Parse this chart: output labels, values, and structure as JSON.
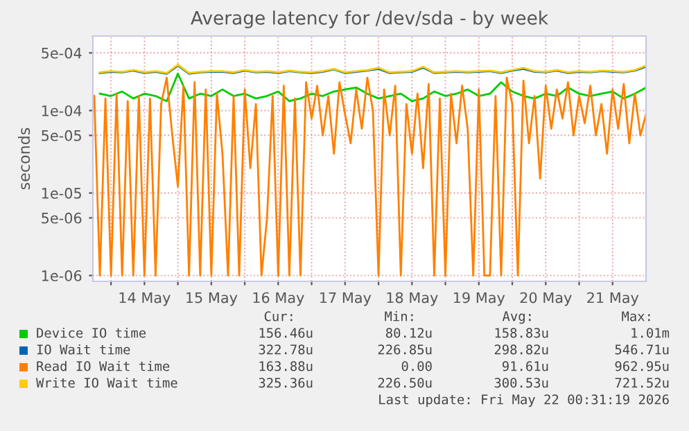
{
  "chart_data": {
    "type": "line",
    "title": "Average latency for /dev/sda - by week",
    "ylabel": "seconds",
    "log": "y",
    "grid": true,
    "legend": "bottom",
    "marker": "none",
    "line_style": "solid",
    "ylim": [
      8.5e-07,
      0.0008
    ],
    "yticks": [
      {
        "value": 1e-06,
        "label": "1e-06"
      },
      {
        "value": 5e-06,
        "label": "5e-06"
      },
      {
        "value": 1e-05,
        "label": "1e-05"
      },
      {
        "value": 5e-05,
        "label": "5e-05"
      },
      {
        "value": 0.0001,
        "label": "1e-04"
      },
      {
        "value": 0.0005,
        "label": "5e-04"
      }
    ],
    "xlim": [
      "2026-05-13T17:30",
      "2026-05-22T00:00"
    ],
    "xticks": [
      {
        "value": "2026-05-14T00:00",
        "label": null
      },
      {
        "value": "2026-05-14T12:00",
        "label": "14 May"
      },
      {
        "value": "2026-05-15T00:00",
        "label": null
      },
      {
        "value": "2026-05-15T12:00",
        "label": "15 May"
      },
      {
        "value": "2026-05-16T00:00",
        "label": null
      },
      {
        "value": "2026-05-16T12:00",
        "label": "16 May"
      },
      {
        "value": "2026-05-17T00:00",
        "label": null
      },
      {
        "value": "2026-05-17T12:00",
        "label": "17 May"
      },
      {
        "value": "2026-05-18T00:00",
        "label": null
      },
      {
        "value": "2026-05-18T12:00",
        "label": "18 May"
      },
      {
        "value": "2026-05-19T00:00",
        "label": null
      },
      {
        "value": "2026-05-19T12:00",
        "label": "19 May"
      },
      {
        "value": "2026-05-20T00:00",
        "label": null
      },
      {
        "value": "2026-05-20T12:00",
        "label": "20 May"
      },
      {
        "value": "2026-05-21T00:00",
        "label": null
      },
      {
        "value": "2026-05-21T12:00",
        "label": "21 May"
      }
    ],
    "series": [
      {
        "name": "Device IO time",
        "color": "#00cc00",
        "x": [
          "2026-05-13T20:00",
          "2026-05-14T00:00",
          "2026-05-14T04:00",
          "2026-05-14T08:00",
          "2026-05-14T12:00",
          "2026-05-14T16:00",
          "2026-05-14T20:00",
          "2026-05-15T00:00",
          "2026-05-15T04:00",
          "2026-05-15T08:00",
          "2026-05-15T12:00",
          "2026-05-15T16:00",
          "2026-05-15T20:00",
          "2026-05-16T00:00",
          "2026-05-16T04:00",
          "2026-05-16T08:00",
          "2026-05-16T12:00",
          "2026-05-16T16:00",
          "2026-05-16T20:00",
          "2026-05-17T00:00",
          "2026-05-17T04:00",
          "2026-05-17T08:00",
          "2026-05-17T12:00",
          "2026-05-17T16:00",
          "2026-05-17T20:00",
          "2026-05-18T00:00",
          "2026-05-18T04:00",
          "2026-05-18T08:00",
          "2026-05-18T12:00",
          "2026-05-18T16:00",
          "2026-05-18T20:00",
          "2026-05-19T00:00",
          "2026-05-19T04:00",
          "2026-05-19T08:00",
          "2026-05-19T12:00",
          "2026-05-19T16:00",
          "2026-05-19T20:00",
          "2026-05-20T00:00",
          "2026-05-20T04:00",
          "2026-05-20T08:00",
          "2026-05-20T12:00",
          "2026-05-20T16:00",
          "2026-05-20T20:00",
          "2026-05-21T00:00",
          "2026-05-21T04:00",
          "2026-05-21T08:00",
          "2026-05-21T12:00",
          "2026-05-21T16:00",
          "2026-05-21T20:00",
          "2026-05-22T00:00"
        ],
        "values": [
          0.00016,
          0.00015,
          0.00017,
          0.00014,
          0.00016,
          0.00015,
          0.00013,
          0.00028,
          0.00014,
          0.00016,
          0.00015,
          0.00018,
          0.00015,
          0.00016,
          0.00014,
          0.00015,
          0.00017,
          0.00013,
          0.00014,
          0.00016,
          0.00015,
          0.00017,
          0.00018,
          0.00019,
          0.00016,
          0.00014,
          0.00015,
          0.00016,
          0.00013,
          0.00014,
          0.00017,
          0.00015,
          0.00016,
          0.00018,
          0.00015,
          0.00016,
          0.00022,
          0.00017,
          0.00015,
          0.00014,
          0.00016,
          0.00015,
          0.00019,
          0.00016,
          0.00015,
          0.00016,
          0.00017,
          0.00014,
          0.00016,
          0.00019
        ]
      },
      {
        "name": "IO Wait time",
        "color": "#0066b3",
        "x": [
          "2026-05-13T20:00",
          "2026-05-14T00:00",
          "2026-05-14T04:00",
          "2026-05-14T08:00",
          "2026-05-14T12:00",
          "2026-05-14T16:00",
          "2026-05-14T20:00",
          "2026-05-15T00:00",
          "2026-05-15T04:00",
          "2026-05-15T08:00",
          "2026-05-15T12:00",
          "2026-05-15T16:00",
          "2026-05-15T20:00",
          "2026-05-16T00:00",
          "2026-05-16T04:00",
          "2026-05-16T08:00",
          "2026-05-16T12:00",
          "2026-05-16T16:00",
          "2026-05-16T20:00",
          "2026-05-17T00:00",
          "2026-05-17T04:00",
          "2026-05-17T08:00",
          "2026-05-17T12:00",
          "2026-05-17T16:00",
          "2026-05-17T20:00",
          "2026-05-18T00:00",
          "2026-05-18T04:00",
          "2026-05-18T08:00",
          "2026-05-18T12:00",
          "2026-05-18T16:00",
          "2026-05-18T20:00",
          "2026-05-19T00:00",
          "2026-05-19T04:00",
          "2026-05-19T08:00",
          "2026-05-19T12:00",
          "2026-05-19T16:00",
          "2026-05-19T20:00",
          "2026-05-20T00:00",
          "2026-05-20T04:00",
          "2026-05-20T08:00",
          "2026-05-20T12:00",
          "2026-05-20T16:00",
          "2026-05-20T20:00",
          "2026-05-21T00:00",
          "2026-05-21T04:00",
          "2026-05-21T08:00",
          "2026-05-21T12:00",
          "2026-05-21T16:00",
          "2026-05-21T20:00",
          "2026-05-22T00:00"
        ],
        "values": [
          0.000285,
          0.000295,
          0.00029,
          0.000305,
          0.000285,
          0.000295,
          0.00028,
          0.00035,
          0.00028,
          0.00029,
          0.000295,
          0.000295,
          0.000285,
          0.000305,
          0.00029,
          0.000295,
          0.000285,
          0.0003,
          0.00029,
          0.000285,
          0.000295,
          0.000315,
          0.000285,
          0.000295,
          0.000305,
          0.00032,
          0.000285,
          0.00029,
          0.000295,
          0.00033,
          0.000285,
          0.00029,
          0.000295,
          0.00029,
          0.000295,
          0.0003,
          0.000285,
          0.000305,
          0.00032,
          0.000295,
          0.00029,
          0.000305,
          0.000285,
          0.000295,
          0.00029,
          0.0003,
          0.000295,
          0.00029,
          0.000305,
          0.00034
        ]
      },
      {
        "name": "Read IO Wait time",
        "color": "#ff8000",
        "x": [
          "2026-05-13T18:00",
          "2026-05-13T20:00",
          "2026-05-13T22:00",
          "2026-05-14T00:00",
          "2026-05-14T02:00",
          "2026-05-14T04:00",
          "2026-05-14T06:00",
          "2026-05-14T08:00",
          "2026-05-14T10:00",
          "2026-05-14T12:00",
          "2026-05-14T14:00",
          "2026-05-14T16:00",
          "2026-05-14T18:00",
          "2026-05-14T20:00",
          "2026-05-14T22:00",
          "2026-05-15T00:00",
          "2026-05-15T02:00",
          "2026-05-15T04:00",
          "2026-05-15T06:00",
          "2026-05-15T08:00",
          "2026-05-15T10:00",
          "2026-05-15T12:00",
          "2026-05-15T14:00",
          "2026-05-15T16:00",
          "2026-05-15T18:00",
          "2026-05-15T20:00",
          "2026-05-15T22:00",
          "2026-05-16T00:00",
          "2026-05-16T02:00",
          "2026-05-16T04:00",
          "2026-05-16T06:00",
          "2026-05-16T08:00",
          "2026-05-16T10:00",
          "2026-05-16T12:00",
          "2026-05-16T14:00",
          "2026-05-16T16:00",
          "2026-05-16T18:00",
          "2026-05-16T20:00",
          "2026-05-16T22:00",
          "2026-05-17T00:00",
          "2026-05-17T02:00",
          "2026-05-17T04:00",
          "2026-05-17T06:00",
          "2026-05-17T08:00",
          "2026-05-17T10:00",
          "2026-05-17T12:00",
          "2026-05-17T14:00",
          "2026-05-17T16:00",
          "2026-05-17T18:00",
          "2026-05-17T20:00",
          "2026-05-17T22:00",
          "2026-05-18T00:00",
          "2026-05-18T02:00",
          "2026-05-18T04:00",
          "2026-05-18T06:00",
          "2026-05-18T08:00",
          "2026-05-18T10:00",
          "2026-05-18T12:00",
          "2026-05-18T14:00",
          "2026-05-18T16:00",
          "2026-05-18T18:00",
          "2026-05-18T20:00",
          "2026-05-18T22:00",
          "2026-05-19T00:00",
          "2026-05-19T02:00",
          "2026-05-19T04:00",
          "2026-05-19T06:00",
          "2026-05-19T08:00",
          "2026-05-19T10:00",
          "2026-05-19T12:00",
          "2026-05-19T14:00",
          "2026-05-19T16:00",
          "2026-05-19T18:00",
          "2026-05-19T20:00",
          "2026-05-19T22:00",
          "2026-05-20T00:00",
          "2026-05-20T02:00",
          "2026-05-20T04:00",
          "2026-05-20T06:00",
          "2026-05-20T08:00",
          "2026-05-20T10:00",
          "2026-05-20T12:00",
          "2026-05-20T14:00",
          "2026-05-20T16:00",
          "2026-05-20T18:00",
          "2026-05-20T20:00",
          "2026-05-20T22:00",
          "2026-05-21T00:00",
          "2026-05-21T02:00",
          "2026-05-21T04:00",
          "2026-05-21T06:00",
          "2026-05-21T08:00",
          "2026-05-21T10:00",
          "2026-05-21T12:00",
          "2026-05-21T14:00",
          "2026-05-21T16:00",
          "2026-05-21T18:00",
          "2026-05-21T20:00",
          "2026-05-21T22:00",
          "2026-05-22T00:00"
        ],
        "values": [
          0.00015,
          1e-06,
          0.00014,
          1e-06,
          0.00016,
          1e-06,
          0.00013,
          1e-06,
          0.00015,
          1e-06,
          0.00014,
          1e-06,
          0.00012,
          0.00025,
          5e-05,
          1.2e-05,
          0.0002,
          1e-06,
          0.00022,
          1e-06,
          0.00018,
          1e-06,
          0.00016,
          3e-05,
          1e-06,
          0.00015,
          1e-06,
          0.00018,
          2e-05,
          0.00012,
          1e-06,
          5e-06,
          0.00015,
          1e-06,
          0.0002,
          1e-06,
          0.00014,
          1e-06,
          0.00022,
          8e-05,
          0.0002,
          5e-05,
          0.00015,
          3e-05,
          0.00022,
          9e-05,
          4e-05,
          0.00018,
          6e-05,
          0.00025,
          0.0001,
          1e-06,
          0.00018,
          5e-05,
          0.0002,
          1e-06,
          0.00012,
          3e-05,
          0.00016,
          2e-05,
          0.00021,
          1e-06,
          0.00014,
          1e-06,
          0.00016,
          4e-05,
          0.0002,
          6e-05,
          1e-06,
          0.00018,
          1e-06,
          1e-06,
          0.00015,
          1e-06,
          0.00025,
          0.00012,
          1e-06,
          0.00023,
          4e-05,
          0.00015,
          1.5e-05,
          0.0002,
          6e-05,
          0.00018,
          8e-05,
          0.00022,
          5e-05,
          0.00015,
          7e-05,
          0.0002,
          5e-05,
          0.00012,
          3e-05,
          0.00018,
          6e-05,
          0.00021,
          4e-05,
          0.00016,
          5e-05,
          9e-05
        ]
      },
      {
        "name": "Write IO Wait time",
        "color": "#ffcc00",
        "x": [
          "2026-05-13T20:00",
          "2026-05-14T00:00",
          "2026-05-14T04:00",
          "2026-05-14T08:00",
          "2026-05-14T12:00",
          "2026-05-14T16:00",
          "2026-05-14T20:00",
          "2026-05-15T00:00",
          "2026-05-15T04:00",
          "2026-05-15T08:00",
          "2026-05-15T12:00",
          "2026-05-15T16:00",
          "2026-05-15T20:00",
          "2026-05-16T00:00",
          "2026-05-16T04:00",
          "2026-05-16T08:00",
          "2026-05-16T12:00",
          "2026-05-16T16:00",
          "2026-05-16T20:00",
          "2026-05-17T00:00",
          "2026-05-17T04:00",
          "2026-05-17T08:00",
          "2026-05-17T12:00",
          "2026-05-17T16:00",
          "2026-05-17T20:00",
          "2026-05-18T00:00",
          "2026-05-18T04:00",
          "2026-05-18T08:00",
          "2026-05-18T12:00",
          "2026-05-18T16:00",
          "2026-05-18T20:00",
          "2026-05-19T00:00",
          "2026-05-19T04:00",
          "2026-05-19T08:00",
          "2026-05-19T12:00",
          "2026-05-19T16:00",
          "2026-05-19T20:00",
          "2026-05-20T00:00",
          "2026-05-20T04:00",
          "2026-05-20T08:00",
          "2026-05-20T12:00",
          "2026-05-20T16:00",
          "2026-05-20T20:00",
          "2026-05-21T00:00",
          "2026-05-21T04:00",
          "2026-05-21T08:00",
          "2026-05-21T12:00",
          "2026-05-21T16:00",
          "2026-05-21T20:00",
          "2026-05-22T00:00"
        ],
        "values": [
          0.00029,
          0.0003,
          0.000295,
          0.00031,
          0.00029,
          0.0003,
          0.000285,
          0.00036,
          0.000285,
          0.000295,
          0.0003,
          0.0003,
          0.00029,
          0.00031,
          0.000295,
          0.0003,
          0.00029,
          0.000305,
          0.000295,
          0.00029,
          0.0003,
          0.00032,
          0.00029,
          0.0003,
          0.00031,
          0.00033,
          0.00029,
          0.000295,
          0.0003,
          0.00034,
          0.00029,
          0.000295,
          0.0003,
          0.000295,
          0.0003,
          0.000305,
          0.00029,
          0.00031,
          0.00033,
          0.0003,
          0.000295,
          0.00031,
          0.00029,
          0.0003,
          0.000295,
          0.000305,
          0.0003,
          0.000295,
          0.00031,
          0.00035
        ]
      }
    ],
    "annotations": [
      "Cur:",
      "Min:",
      "Avg:",
      "Max:",
      "156.46u",
      "80.12u",
      "158.83u",
      "1.01m",
      "322.78u",
      "226.85u",
      "298.82u",
      "546.71u",
      "163.88u",
      "0.00",
      "91.61u",
      "962.95u",
      "325.36u",
      "226.50u",
      "300.53u",
      "721.52u",
      "Last update: Fri May 22 00:31:19 2026"
    ]
  }
}
